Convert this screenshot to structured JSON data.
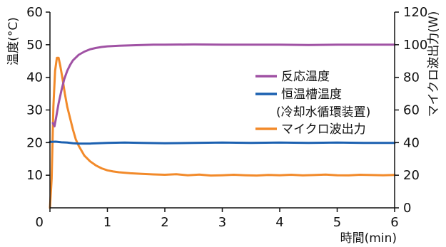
{
  "chart_data": {
    "type": "line",
    "xlabel": "時間(min)",
    "ylabel_left": "温度(°C)",
    "ylabel_right": "マイクロ波出力(W)",
    "xlim": [
      0,
      6
    ],
    "ylim_left": [
      0,
      60
    ],
    "ylim_right": [
      0,
      120
    ],
    "x_ticks": [
      "0",
      "1",
      "2",
      "3",
      "4",
      "5",
      "6"
    ],
    "y_left_ticks": [
      "10",
      "20",
      "30",
      "40",
      "50",
      "60"
    ],
    "y_right_ticks": [
      "0",
      "20",
      "40",
      "60",
      "80",
      "100",
      "120"
    ],
    "grid": false,
    "legend_position": "center-right",
    "series": [
      {
        "name": "反応温度",
        "axis": "left",
        "color": "#a052a4",
        "x": [
          0.05,
          0.08,
          0.11,
          0.15,
          0.2,
          0.25,
          0.3,
          0.35,
          0.4,
          0.5,
          0.6,
          0.7,
          0.8,
          0.9,
          1.0,
          1.2,
          1.4,
          1.6,
          1.8,
          2.0,
          2.5,
          3.0,
          3.5,
          4.0,
          4.5,
          5.0,
          5.5,
          6.0
        ],
        "y": [
          26.0,
          25.0,
          28.0,
          32.0,
          36.0,
          39.5,
          42.0,
          43.8,
          45.2,
          46.9,
          47.9,
          48.6,
          49.0,
          49.3,
          49.5,
          49.7,
          49.8,
          49.9,
          50.0,
          50.0,
          50.1,
          50.0,
          50.0,
          50.0,
          49.9,
          50.0,
          50.0,
          50.0
        ]
      },
      {
        "name": "恒温槽温度",
        "name_sub": "(冷却水循環装置)",
        "axis": "left",
        "color": "#1b60b0",
        "x": [
          0.0,
          0.1,
          0.2,
          0.3,
          0.4,
          0.5,
          0.7,
          1.0,
          1.3,
          1.6,
          2.0,
          2.5,
          3.0,
          3.5,
          4.0,
          4.5,
          5.0,
          5.5,
          6.0
        ],
        "y": [
          20.2,
          20.3,
          20.1,
          20.0,
          19.8,
          19.7,
          19.7,
          19.9,
          20.0,
          19.9,
          19.8,
          19.9,
          20.0,
          19.9,
          20.0,
          19.9,
          20.0,
          19.9,
          19.9
        ]
      },
      {
        "name": "マイクロ波出力",
        "axis": "right",
        "color": "#f28a2a",
        "x": [
          0.0,
          0.03,
          0.06,
          0.09,
          0.12,
          0.15,
          0.18,
          0.22,
          0.26,
          0.3,
          0.35,
          0.4,
          0.45,
          0.5,
          0.6,
          0.7,
          0.8,
          0.9,
          1.0,
          1.1,
          1.2,
          1.4,
          1.6,
          1.8,
          2.0,
          2.2,
          2.4,
          2.6,
          2.8,
          3.0,
          3.2,
          3.4,
          3.6,
          3.8,
          4.0,
          4.2,
          4.4,
          4.6,
          4.8,
          5.0,
          5.2,
          5.4,
          5.6,
          5.8,
          6.0
        ],
        "y": [
          0,
          18,
          62,
          84,
          92,
          92,
          87,
          79,
          70,
          62,
          55,
          48,
          42,
          38,
          32,
          28.5,
          26,
          24.2,
          23,
          22.3,
          21.8,
          21.2,
          20.8,
          20.5,
          20.3,
          20.6,
          20.0,
          20.4,
          19.8,
          20.0,
          20.3,
          20.0,
          19.8,
          20.2,
          20.0,
          20.3,
          19.9,
          20.1,
          20.4,
          20.0,
          19.9,
          20.3,
          20.1,
          20.0,
          20.2
        ]
      }
    ]
  }
}
